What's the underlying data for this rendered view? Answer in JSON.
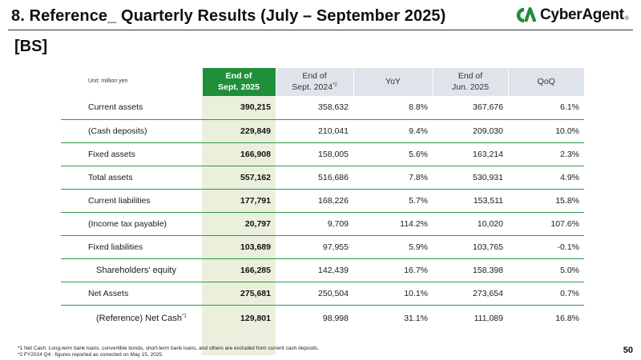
{
  "header": {
    "title": "8.  Reference_ Quarterly Results (July – September 2025)",
    "section": "[BS]",
    "logo_text": "CyberAgent",
    "logo_mark": "®",
    "brand_color": "#1f8f3a"
  },
  "table": {
    "unit": "Unit: million yen",
    "columns": {
      "current": {
        "line1": "End of",
        "line2": "Sept. 2025"
      },
      "prev_year": {
        "line1": "End of",
        "line2": "Sept. 2024",
        "note": "*2"
      },
      "yoy": "YoY",
      "prev_q": {
        "line1": "End of",
        "line2": "Jun. 2025"
      },
      "qoq": "QoQ"
    },
    "rows": [
      {
        "label": "Current assets",
        "current": "390,215",
        "prev_year": "358,632",
        "yoy": "8.8%",
        "prev_q": "367,676",
        "qoq": "6.1%"
      },
      {
        "label": "(Cash deposits)",
        "current": "229,849",
        "prev_year": "210,041",
        "yoy": "9.4%",
        "prev_q": "209,030",
        "qoq": "10.0%"
      },
      {
        "label": "Fixed assets",
        "current": "166,908",
        "prev_year": "158,005",
        "yoy": "5.6%",
        "prev_q": "163,214",
        "qoq": "2.3%"
      },
      {
        "label": "Total assets",
        "current": "557,162",
        "prev_year": "516,686",
        "yoy": "7.8%",
        "prev_q": "530,931",
        "qoq": "4.9%"
      },
      {
        "label": "Current liabilities",
        "current": "177,791",
        "prev_year": "168,226",
        "yoy": "5.7%",
        "prev_q": "153,511",
        "qoq": "15.8%"
      },
      {
        "label": "(Income tax payable)",
        "current": "20,797",
        "prev_year": "9,709",
        "yoy": "114.2%",
        "prev_q": "10,020",
        "qoq": "107.6%"
      },
      {
        "label": "Fixed liabilities",
        "current": "103,689",
        "prev_year": "97,955",
        "yoy": "5.9%",
        "prev_q": "103,765",
        "qoq": "-0.1%"
      },
      {
        "label": "Shareholders' equity",
        "current": "166,285",
        "prev_year": "142,439",
        "yoy": "16.7%",
        "prev_q": "158,398",
        "qoq": "5.0%"
      },
      {
        "label": "Net Assets",
        "current": "275,681",
        "prev_year": "250,504",
        "yoy": "10.1%",
        "prev_q": "273,654",
        "qoq": "0.7%"
      },
      {
        "label": "(Reference) Net Cash",
        "label_note": "*1",
        "current": "129,801",
        "prev_year": "98,998",
        "yoy": "31.1%",
        "prev_q": "111,089",
        "qoq": "16.8%"
      }
    ]
  },
  "footnotes": [
    "*1  Net Cash: Long-term bank loans, convertible bonds, short-term bank loans, and others are excluded from current cash deposits.",
    "*2  FY2024 Q4 : figures reported as corrected on May 15, 2025."
  ],
  "page_number": "50"
}
